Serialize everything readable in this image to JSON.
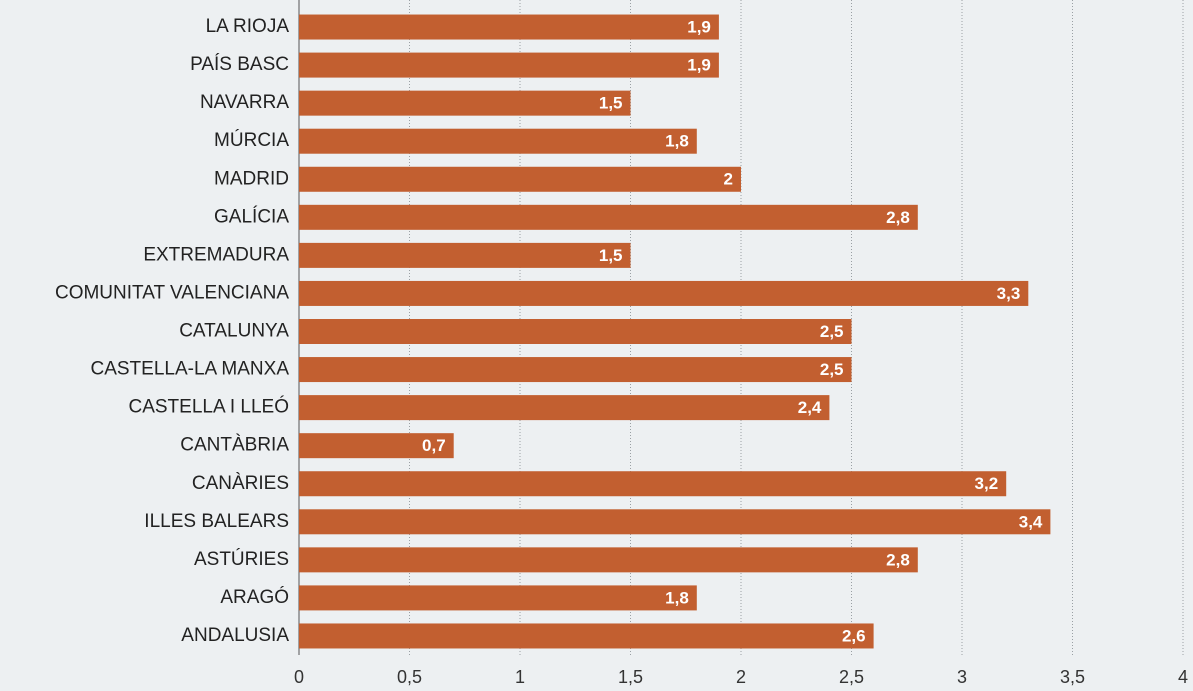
{
  "chart_data": {
    "type": "bar",
    "orientation": "horizontal",
    "categories": [
      "LA RIOJA",
      "PAÍS BASC",
      "NAVARRA",
      "MÚRCIA",
      "MADRID",
      "GALÍCIA",
      "EXTREMADURA",
      "COMUNITAT VALENCIANA",
      "CATALUNYA",
      "CASTELLA-LA MANXA",
      "CASTELLA I LLEÓ",
      "CANTÀBRIA",
      "CANÀRIES",
      "ILLES BALEARS",
      "ASTÚRIES",
      "ARAGÓ",
      "ANDALUSIA"
    ],
    "values": [
      1.9,
      1.9,
      1.5,
      1.8,
      2,
      2.8,
      1.5,
      3.3,
      2.5,
      2.5,
      2.4,
      0.7,
      3.2,
      3.4,
      2.8,
      1.8,
      2.6
    ],
    "value_labels": [
      "1,9",
      "1,9",
      "1,5",
      "1,8",
      "2",
      "2,8",
      "1,5",
      "3,3",
      "2,5",
      "2,5",
      "2,4",
      "0,7",
      "3,2",
      "3,4",
      "2,8",
      "1,8",
      "2,6"
    ],
    "color": "#c25f30",
    "xlim": [
      0,
      4
    ],
    "xticks": [
      0,
      {
        "value": 0.5,
        "label": "0,5"
      },
      1,
      {
        "value": 1.5,
        "label": "1,5"
      },
      2,
      {
        "value": 2.5,
        "label": "2,5"
      },
      3,
      {
        "value": 3.5,
        "label": "3,5"
      },
      4
    ],
    "grid": true
  }
}
